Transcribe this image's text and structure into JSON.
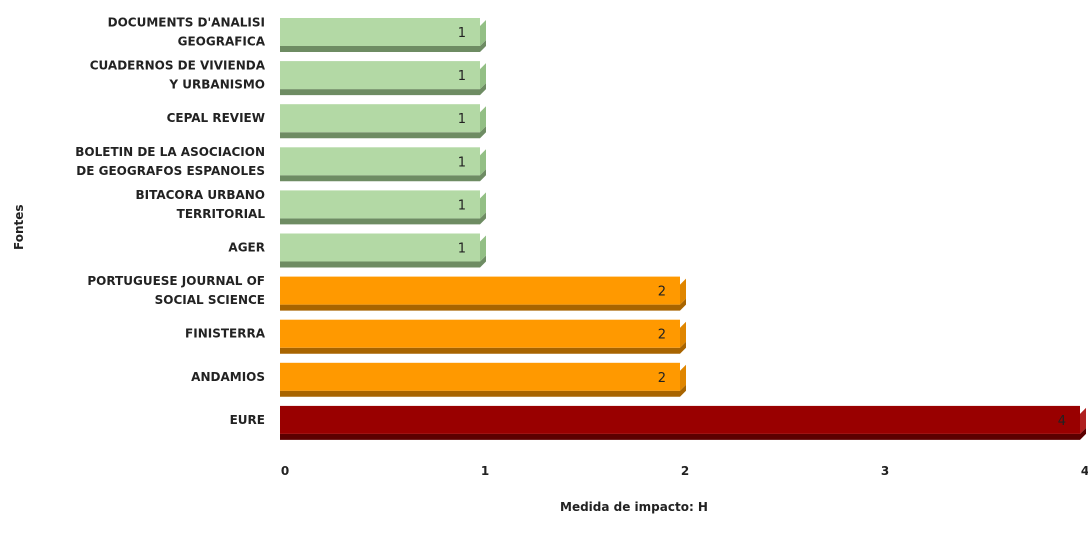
{
  "chart_data": {
    "type": "bar",
    "orientation": "horizontal",
    "title": "",
    "xlabel": "Medida de impacto: H",
    "ylabel": "Fontes",
    "xlim": [
      0,
      4
    ],
    "xticks": [
      "0",
      "1",
      "2",
      "3",
      "4"
    ],
    "grid": false,
    "legend": "none",
    "categories": [
      [
        "DOCUMENTS D'ANALISI",
        "GEOGRAFICA"
      ],
      [
        "CUADERNOS DE VIVIENDA",
        "Y URBANISMO"
      ],
      [
        "CEPAL REVIEW"
      ],
      [
        "BOLETIN DE LA ASOCIACION",
        "DE GEOGRAFOS ESPANOLES"
      ],
      [
        "BITACORA URBANO",
        "TERRITORIAL"
      ],
      [
        "AGER"
      ],
      [
        "PORTUGUESE JOURNAL OF",
        "SOCIAL SCIENCE"
      ],
      [
        "FINISTERRA"
      ],
      [
        "ANDAMIOS"
      ],
      [
        "EURE"
      ]
    ],
    "values": [
      1,
      1,
      1,
      1,
      1,
      1,
      2,
      2,
      2,
      4
    ],
    "value_labels": [
      "1",
      "1",
      "1",
      "1",
      "1",
      "1",
      "2",
      "2",
      "2",
      "4"
    ],
    "colors": {
      "1": {
        "face": "#b3d9a5",
        "side": "#93bf85",
        "shadow": "#6e8c63"
      },
      "2": {
        "face": "#ff9900",
        "side": "#e08600",
        "shadow": "#a86400"
      },
      "4": {
        "face": "#990000",
        "side": "#b02020",
        "shadow": "#5c0000"
      }
    }
  }
}
